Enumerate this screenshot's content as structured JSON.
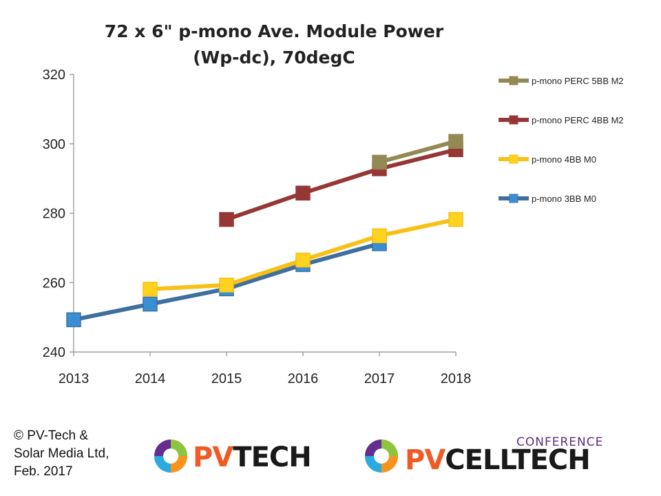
{
  "chart_data": {
    "type": "line",
    "title_line1": "72 x 6\" p-mono  Ave. Module Power",
    "title_line2": "(Wp-dc), 70degC",
    "x": [
      2013,
      2014,
      2015,
      2016,
      2017,
      2018
    ],
    "x_tick_labels": [
      "2013",
      "2014",
      "2015",
      "2016",
      "2017",
      "2018"
    ],
    "ylim": [
      240,
      320
    ],
    "y_ticks": [
      240,
      260,
      280,
      300,
      320
    ],
    "y_tick_labels": [
      "240",
      "260",
      "280",
      "300",
      "320"
    ],
    "grid": false,
    "legend_position": "right",
    "series": [
      {
        "name": "p-mono 3BB M0",
        "color": "#3f6f9f",
        "marker_color": "#3a8fd4",
        "points": [
          [
            2013,
            249.3
          ],
          [
            2014,
            253.8
          ],
          [
            2015,
            258.2
          ],
          [
            2016,
            265.2
          ],
          [
            2017,
            271.2
          ]
        ]
      },
      {
        "name": "p-mono 4BB M0",
        "color": "#f7c117",
        "marker_color": "#ffd21f",
        "points": [
          [
            2014,
            258.1
          ],
          [
            2015,
            259.3
          ],
          [
            2016,
            266.5
          ],
          [
            2017,
            273.5
          ],
          [
            2018,
            278.2
          ]
        ]
      },
      {
        "name": "p-mono PERC 4BB M2",
        "color": "#953735",
        "marker_color": "#953735",
        "points": [
          [
            2015,
            278.2
          ],
          [
            2016,
            285.8
          ],
          [
            2017,
            292.8
          ],
          [
            2018,
            298.3
          ]
        ]
      },
      {
        "name": "p-mono PERC 5BB M2",
        "color": "#938953",
        "marker_color": "#938953",
        "points": [
          [
            2017,
            294.7
          ],
          [
            2018,
            300.7
          ]
        ]
      }
    ],
    "legend_order": [
      "p-mono PERC 5BB M2",
      "p-mono PERC 4BB M2",
      "p-mono 4BB M0",
      "p-mono 3BB M0"
    ]
  },
  "footer": {
    "copyright_lines": [
      "© PV-Tech &",
      "Solar Media Ltd,",
      "Feb. 2017"
    ]
  },
  "logos": {
    "pvtech": {
      "part1": "PV",
      "part2": "TECH"
    },
    "pvcelltech": {
      "tag": "CONFERENCE",
      "part1": "PV",
      "part2": "CELLTECH"
    }
  }
}
